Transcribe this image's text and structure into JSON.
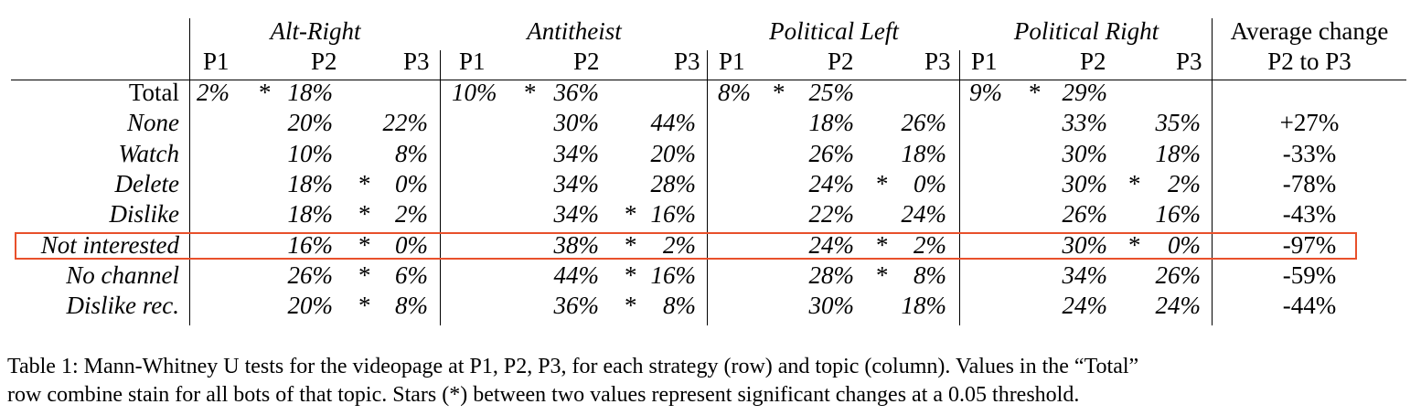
{
  "groups": [
    {
      "name": "Alt-Right"
    },
    {
      "name": "Antitheist"
    },
    {
      "name": "Political Left"
    },
    {
      "name": "Political Right"
    }
  ],
  "avg_header": {
    "line1": "Average change",
    "line2": "P2 to P3"
  },
  "sub_headers": [
    "P1",
    "P2",
    "P3"
  ],
  "rows": [
    {
      "label": "Total",
      "italic": false,
      "groups": [
        {
          "p1": "2%",
          "s12": "*",
          "p2": "18%",
          "s23": "",
          "p3": ""
        },
        {
          "p1": "10%",
          "s12": "*",
          "p2": "36%",
          "s23": "",
          "p3": ""
        },
        {
          "p1": "8%",
          "s12": "*",
          "p2": "25%",
          "s23": "",
          "p3": ""
        },
        {
          "p1": "9%",
          "s12": "*",
          "p2": "29%",
          "s23": "",
          "p3": ""
        }
      ],
      "avg": ""
    },
    {
      "label": "None",
      "italic": true,
      "groups": [
        {
          "p1": "",
          "s12": "",
          "p2": "20%",
          "s23": "",
          "p3": "22%"
        },
        {
          "p1": "",
          "s12": "",
          "p2": "30%",
          "s23": "",
          "p3": "44%"
        },
        {
          "p1": "",
          "s12": "",
          "p2": "18%",
          "s23": "",
          "p3": "26%"
        },
        {
          "p1": "",
          "s12": "",
          "p2": "33%",
          "s23": "",
          "p3": "35%"
        }
      ],
      "avg": "+27%"
    },
    {
      "label": "Watch",
      "italic": true,
      "groups": [
        {
          "p1": "",
          "s12": "",
          "p2": "10%",
          "s23": "",
          "p3": "8%"
        },
        {
          "p1": "",
          "s12": "",
          "p2": "34%",
          "s23": "",
          "p3": "20%"
        },
        {
          "p1": "",
          "s12": "",
          "p2": "26%",
          "s23": "",
          "p3": "18%"
        },
        {
          "p1": "",
          "s12": "",
          "p2": "30%",
          "s23": "",
          "p3": "18%"
        }
      ],
      "avg": "-33%"
    },
    {
      "label": "Delete",
      "italic": true,
      "groups": [
        {
          "p1": "",
          "s12": "",
          "p2": "18%",
          "s23": "*",
          "p3": "0%"
        },
        {
          "p1": "",
          "s12": "",
          "p2": "34%",
          "s23": "",
          "p3": "28%"
        },
        {
          "p1": "",
          "s12": "",
          "p2": "24%",
          "s23": "*",
          "p3": "0%"
        },
        {
          "p1": "",
          "s12": "",
          "p2": "30%",
          "s23": "*",
          "p3": "2%"
        }
      ],
      "avg": "-78%"
    },
    {
      "label": "Dislike",
      "italic": true,
      "groups": [
        {
          "p1": "",
          "s12": "",
          "p2": "18%",
          "s23": "*",
          "p3": "2%"
        },
        {
          "p1": "",
          "s12": "",
          "p2": "34%",
          "s23": "*",
          "p3": "16%"
        },
        {
          "p1": "",
          "s12": "",
          "p2": "22%",
          "s23": "",
          "p3": "24%"
        },
        {
          "p1": "",
          "s12": "",
          "p2": "26%",
          "s23": "",
          "p3": "16%"
        }
      ],
      "avg": "-43%"
    },
    {
      "label": "Not interested",
      "italic": true,
      "highlighted": true,
      "groups": [
        {
          "p1": "",
          "s12": "",
          "p2": "16%",
          "s23": "*",
          "p3": "0%"
        },
        {
          "p1": "",
          "s12": "",
          "p2": "38%",
          "s23": "*",
          "p3": "2%"
        },
        {
          "p1": "",
          "s12": "",
          "p2": "24%",
          "s23": "*",
          "p3": "2%"
        },
        {
          "p1": "",
          "s12": "",
          "p2": "30%",
          "s23": "*",
          "p3": "0%"
        }
      ],
      "avg": "-97%"
    },
    {
      "label": "No channel",
      "italic": true,
      "groups": [
        {
          "p1": "",
          "s12": "",
          "p2": "26%",
          "s23": "*",
          "p3": "6%"
        },
        {
          "p1": "",
          "s12": "",
          "p2": "44%",
          "s23": "*",
          "p3": "16%"
        },
        {
          "p1": "",
          "s12": "",
          "p2": "28%",
          "s23": "*",
          "p3": "8%"
        },
        {
          "p1": "",
          "s12": "",
          "p2": "34%",
          "s23": "",
          "p3": "26%"
        }
      ],
      "avg": "-59%"
    },
    {
      "label": "Dislike rec.",
      "italic": true,
      "groups": [
        {
          "p1": "",
          "s12": "",
          "p2": "20%",
          "s23": "*",
          "p3": "8%"
        },
        {
          "p1": "",
          "s12": "",
          "p2": "36%",
          "s23": "*",
          "p3": "8%"
        },
        {
          "p1": "",
          "s12": "",
          "p2": "30%",
          "s23": "",
          "p3": "18%"
        },
        {
          "p1": "",
          "s12": "",
          "p2": "24%",
          "s23": "",
          "p3": "24%"
        }
      ],
      "avg": "-44%"
    }
  ],
  "caption": {
    "line1": "Table 1: Mann-Whitney U tests for the videopage at P1, P2, P3, for each strategy (row) and topic (column). Values in the “Total”",
    "line2": "row combine stain for all bots of that topic. Stars (*) between two values represent significant changes at a 0.05 threshold."
  },
  "colors": {
    "highlight_border": "#e8502b"
  }
}
